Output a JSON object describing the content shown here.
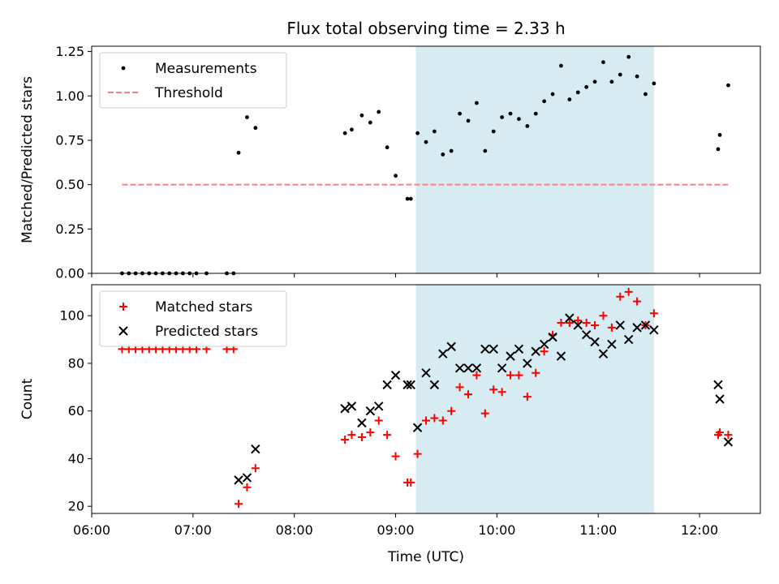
{
  "chart_data": {
    "title": "Flux total observing time = 2.33 h",
    "shaded_interval": {
      "start": "09:12",
      "end": "11:33",
      "color": "#add8e6"
    },
    "x_axis": {
      "label": "Time (UTC)",
      "range": [
        "06:00",
        "12:36"
      ],
      "ticks": [
        "06:00",
        "07:00",
        "08:00",
        "09:00",
        "10:00",
        "11:00",
        "12:00"
      ]
    },
    "panels": [
      {
        "type": "scatter",
        "ylabel": "Matched/Predicted stars",
        "ylim": [
          0,
          1.28
        ],
        "yticks": [
          "0.00",
          "0.25",
          "0.50",
          "0.75",
          "1.00",
          "1.25"
        ],
        "legend_position": "upper-left",
        "series": [
          {
            "name": "Measurements",
            "marker": "dot",
            "color": "#000000",
            "points": [
              [
                "06:18",
                0.0
              ],
              [
                "06:22",
                0.0
              ],
              [
                "06:26",
                0.0
              ],
              [
                "06:30",
                0.0
              ],
              [
                "06:34",
                0.0
              ],
              [
                "06:38",
                0.0
              ],
              [
                "06:42",
                0.0
              ],
              [
                "06:46",
                0.0
              ],
              [
                "06:50",
                0.0
              ],
              [
                "06:54",
                0.0
              ],
              [
                "06:58",
                0.0
              ],
              [
                "07:02",
                0.0
              ],
              [
                "07:08",
                0.0
              ],
              [
                "07:20",
                0.0
              ],
              [
                "07:24",
                0.0
              ],
              [
                "07:27",
                0.68
              ],
              [
                "07:32",
                0.88
              ],
              [
                "07:37",
                0.82
              ],
              [
                "08:30",
                0.79
              ],
              [
                "08:34",
                0.81
              ],
              [
                "08:40",
                0.89
              ],
              [
                "08:45",
                0.85
              ],
              [
                "08:50",
                0.91
              ],
              [
                "08:55",
                0.71
              ],
              [
                "09:00",
                0.55
              ],
              [
                "09:07",
                0.42
              ],
              [
                "09:09",
                0.42
              ],
              [
                "09:13",
                0.79
              ],
              [
                "09:18",
                0.74
              ],
              [
                "09:23",
                0.8
              ],
              [
                "09:28",
                0.67
              ],
              [
                "09:33",
                0.69
              ],
              [
                "09:38",
                0.9
              ],
              [
                "09:43",
                0.86
              ],
              [
                "09:48",
                0.96
              ],
              [
                "09:53",
                0.69
              ],
              [
                "09:58",
                0.8
              ],
              [
                "10:03",
                0.88
              ],
              [
                "10:08",
                0.9
              ],
              [
                "10:13",
                0.87
              ],
              [
                "10:18",
                0.83
              ],
              [
                "10:23",
                0.9
              ],
              [
                "10:28",
                0.97
              ],
              [
                "10:33",
                1.01
              ],
              [
                "10:38",
                1.17
              ],
              [
                "10:43",
                0.98
              ],
              [
                "10:48",
                1.02
              ],
              [
                "10:53",
                1.05
              ],
              [
                "10:58",
                1.08
              ],
              [
                "11:03",
                1.19
              ],
              [
                "11:08",
                1.08
              ],
              [
                "11:13",
                1.12
              ],
              [
                "11:18",
                1.22
              ],
              [
                "11:23",
                1.11
              ],
              [
                "11:28",
                1.01
              ],
              [
                "11:33",
                1.07
              ],
              [
                "12:11",
                0.7
              ],
              [
                "12:12",
                0.78
              ],
              [
                "12:17",
                1.06
              ]
            ]
          },
          {
            "name": "Threshold",
            "marker": "dashed-line",
            "color": "#ff7f7f",
            "points": [
              [
                "06:18",
                0.5
              ],
              [
                "12:17",
                0.5
              ]
            ]
          }
        ]
      },
      {
        "type": "scatter",
        "ylabel": "Count",
        "ylim": [
          17,
          113
        ],
        "yticks": [
          "20",
          "40",
          "60",
          "80",
          "100"
        ],
        "legend_position": "upper-left",
        "series": [
          {
            "name": "Matched stars",
            "marker": "plus",
            "color": "#ff0000",
            "points": [
              [
                "06:18",
                86
              ],
              [
                "06:22",
                86
              ],
              [
                "06:26",
                86
              ],
              [
                "06:30",
                86
              ],
              [
                "06:34",
                86
              ],
              [
                "06:38",
                86
              ],
              [
                "06:42",
                86
              ],
              [
                "06:46",
                86
              ],
              [
                "06:50",
                86
              ],
              [
                "06:54",
                86
              ],
              [
                "06:58",
                86
              ],
              [
                "07:02",
                86
              ],
              [
                "07:08",
                86
              ],
              [
                "07:20",
                86
              ],
              [
                "07:24",
                86
              ],
              [
                "07:27",
                21
              ],
              [
                "07:32",
                28
              ],
              [
                "07:37",
                36
              ],
              [
                "08:30",
                48
              ],
              [
                "08:34",
                50
              ],
              [
                "08:40",
                49
              ],
              [
                "08:45",
                51
              ],
              [
                "08:50",
                56
              ],
              [
                "08:55",
                50
              ],
              [
                "09:00",
                41
              ],
              [
                "09:07",
                30
              ],
              [
                "09:09",
                30
              ],
              [
                "09:13",
                42
              ],
              [
                "09:18",
                56
              ],
              [
                "09:23",
                57
              ],
              [
                "09:28",
                56
              ],
              [
                "09:33",
                60
              ],
              [
                "09:38",
                70
              ],
              [
                "09:43",
                67
              ],
              [
                "09:48",
                75
              ],
              [
                "09:53",
                59
              ],
              [
                "09:58",
                69
              ],
              [
                "10:03",
                68
              ],
              [
                "10:08",
                75
              ],
              [
                "10:13",
                75
              ],
              [
                "10:18",
                66
              ],
              [
                "10:23",
                76
              ],
              [
                "10:28",
                85
              ],
              [
                "10:33",
                92
              ],
              [
                "10:38",
                97
              ],
              [
                "10:43",
                97
              ],
              [
                "10:48",
                98
              ],
              [
                "10:53",
                97
              ],
              [
                "10:58",
                96
              ],
              [
                "11:03",
                100
              ],
              [
                "11:08",
                95
              ],
              [
                "11:13",
                108
              ],
              [
                "11:18",
                110
              ],
              [
                "11:23",
                106
              ],
              [
                "11:28",
                96
              ],
              [
                "11:33",
                101
              ],
              [
                "12:11",
                50
              ],
              [
                "12:12",
                51
              ],
              [
                "12:17",
                50
              ]
            ]
          },
          {
            "name": "Predicted stars",
            "marker": "x",
            "color": "#000000",
            "points": [
              [
                "07:27",
                31
              ],
              [
                "07:32",
                32
              ],
              [
                "07:37",
                44
              ],
              [
                "08:30",
                61
              ],
              [
                "08:34",
                62
              ],
              [
                "08:40",
                55
              ],
              [
                "08:45",
                60
              ],
              [
                "08:50",
                62
              ],
              [
                "08:55",
                71
              ],
              [
                "09:00",
                75
              ],
              [
                "09:07",
                71
              ],
              [
                "09:09",
                71
              ],
              [
                "09:13",
                53
              ],
              [
                "09:18",
                76
              ],
              [
                "09:23",
                71
              ],
              [
                "09:28",
                84
              ],
              [
                "09:33",
                87
              ],
              [
                "09:38",
                78
              ],
              [
                "09:43",
                78
              ],
              [
                "09:48",
                78
              ],
              [
                "09:53",
                86
              ],
              [
                "09:58",
                86
              ],
              [
                "10:03",
                78
              ],
              [
                "10:08",
                83
              ],
              [
                "10:13",
                86
              ],
              [
                "10:18",
                80
              ],
              [
                "10:23",
                85
              ],
              [
                "10:28",
                88
              ],
              [
                "10:33",
                91
              ],
              [
                "10:38",
                83
              ],
              [
                "10:43",
                99
              ],
              [
                "10:48",
                96
              ],
              [
                "10:53",
                92
              ],
              [
                "10:58",
                89
              ],
              [
                "11:03",
                84
              ],
              [
                "11:08",
                88
              ],
              [
                "11:13",
                96
              ],
              [
                "11:18",
                90
              ],
              [
                "11:23",
                95
              ],
              [
                "11:28",
                96
              ],
              [
                "11:33",
                94
              ],
              [
                "12:11",
                71
              ],
              [
                "12:12",
                65
              ],
              [
                "12:17",
                47
              ]
            ]
          }
        ]
      }
    ]
  }
}
